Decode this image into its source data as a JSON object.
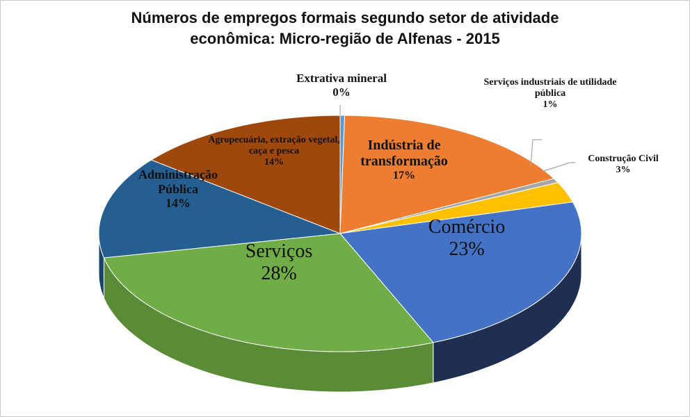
{
  "chart_data": {
    "type": "pie",
    "title_line1": "Números de empregos formais segundo setor de atividade",
    "title_line2": "econômica: Micro-região de Alfenas - 2015",
    "slices": [
      {
        "name": "Extrativa mineral",
        "label": "0%",
        "value": 0.3,
        "color": "#5b9bd5",
        "side": "#41719c"
      },
      {
        "name": "Indústria de transformação",
        "label": "17%",
        "value": 17,
        "color": "#ed7d31",
        "side": "#b35c22"
      },
      {
        "name": "Serviços industriais de utilidade pública",
        "label": "1%",
        "value": 0.6,
        "color": "#a5a5a5",
        "side": "#7b7b7b"
      },
      {
        "name": "Construção Civil",
        "label": "3%",
        "value": 2.8,
        "color": "#ffc000",
        "side": "#bf9000"
      },
      {
        "name": "Comércio",
        "label": "23%",
        "value": 23,
        "color": "#4472c4",
        "side": "#1f2f52"
      },
      {
        "name": "Serviços",
        "label": "28%",
        "value": 28,
        "color": "#70ad47",
        "side": "#5a8c38"
      },
      {
        "name": "Administração Pública",
        "label": "14%",
        "value": 14,
        "color": "#255e91",
        "side": "#1a4369"
      },
      {
        "name": "Agropecuária, extração vegetal, caça e pesca",
        "label": "14%",
        "value": 14.3,
        "color": "#9e480e",
        "side": "#723409"
      }
    ]
  }
}
